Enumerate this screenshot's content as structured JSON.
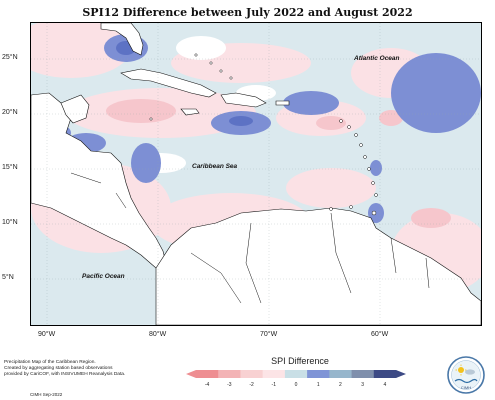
{
  "title": "SPI12 Difference between July 2022 and August 2022",
  "lat_labels": [
    "25°N",
    "20°N",
    "15°N",
    "10°N",
    "5°N"
  ],
  "lon_labels": [
    "90°W",
    "80°W",
    "70°W",
    "60°W"
  ],
  "oceans": {
    "atlantic": "Atlantic Ocean",
    "caribbean": "Caribbean Sea",
    "pacific": "Pacific Ocean"
  },
  "footnote": {
    "line1": "Precipitation Map of the Caribbean Region.",
    "line2": "Created by aggregating station based observations",
    "line3": "provided by CariCOF, with INSIVUMEH Reanalysis Data.",
    "credit": "CIMH Sep-2022"
  },
  "legend": {
    "title": "SPI Difference",
    "ticks": [
      "-4",
      "-3",
      "-2",
      "-1",
      "0",
      "1",
      "2",
      "3",
      "4"
    ],
    "colors": [
      "#ee8e92",
      "#f3b3b5",
      "#f8d1d2",
      "#fce4e6",
      "#c9dfe6",
      "#7f94d6",
      "#97b6cc",
      "#7f8fac",
      "#3d4a85"
    ]
  },
  "logo": {
    "text": "CIMH",
    "icon": "cimh-sun-logo"
  },
  "colors": {
    "pos_dark": "#6f80cf",
    "pos_light": "#c5dde2",
    "neg_light": "#fbdde2",
    "neg_mid": "#f6c2c8",
    "neutral": "#ffffff"
  }
}
